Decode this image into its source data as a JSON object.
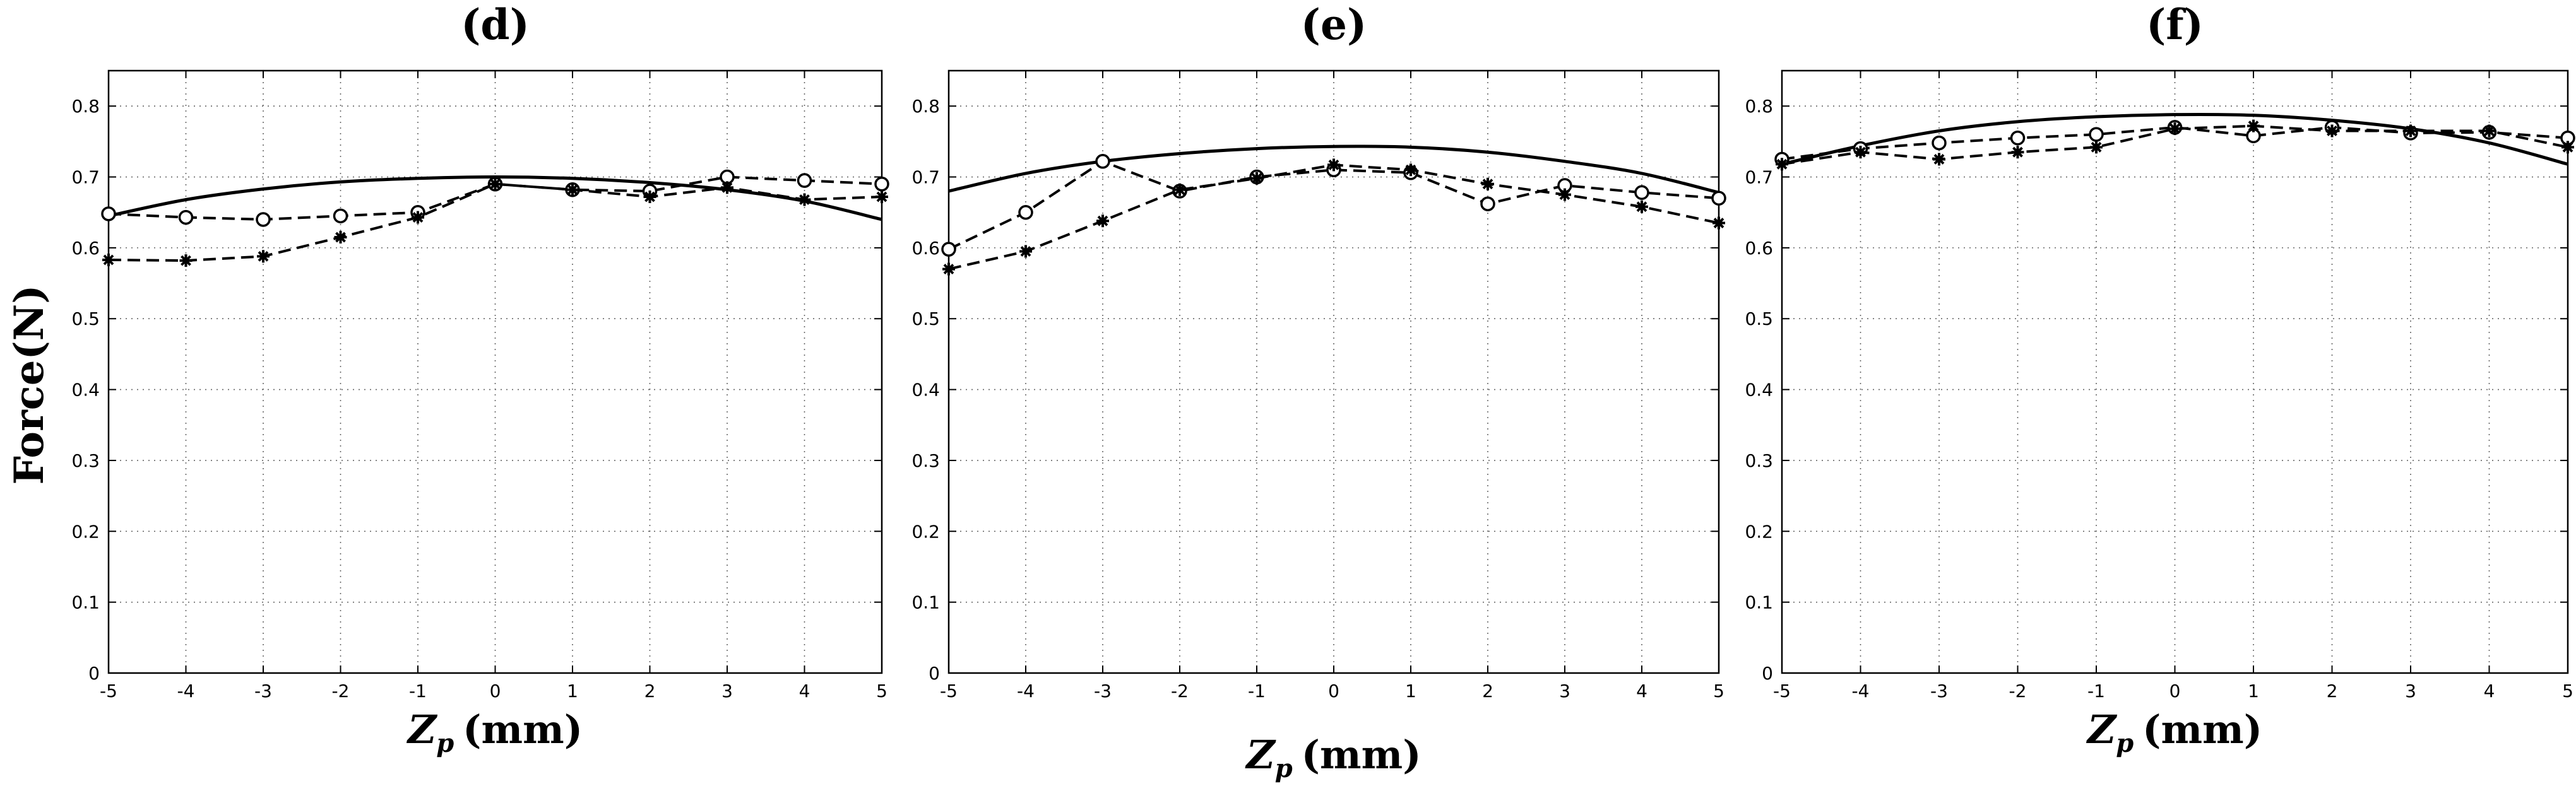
{
  "figure": {
    "ylabel": "Force(N)"
  },
  "chart_data": [
    {
      "type": "line",
      "title": "(d)",
      "xlabel_main": "Z",
      "xlabel_sub": "p",
      "xlabel_unit": "(mm)",
      "ylabel": "Force(N)",
      "xlim": [
        -5,
        5
      ],
      "ylim": [
        0,
        0.85
      ],
      "grid": true,
      "x": [
        -5,
        -4,
        -3,
        -2,
        -1,
        0,
        1,
        2,
        3,
        4,
        5
      ],
      "x_ticks": [
        "-5",
        "-4",
        "-3",
        "-2",
        "-1",
        "0",
        "1",
        "2",
        "3",
        "4",
        "5"
      ],
      "y_ticks": [
        "0",
        "0.1",
        "0.2",
        "0.3",
        "0.4",
        "0.5",
        "0.6",
        "0.7",
        "0.8"
      ],
      "series": [
        {
          "name": "solid",
          "style": "solid",
          "values": [
            0.645,
            0.668,
            0.683,
            0.693,
            0.698,
            0.7,
            0.698,
            0.692,
            0.682,
            0.666,
            0.64
          ]
        },
        {
          "name": "circles",
          "style": "dashed-circle",
          "values": [
            0.648,
            0.643,
            0.64,
            0.645,
            0.65,
            0.69,
            0.682,
            0.68,
            0.7,
            0.695,
            0.69
          ]
        },
        {
          "name": "stars",
          "style": "dashed-star",
          "values": [
            0.583,
            0.582,
            0.588,
            0.615,
            0.643,
            0.69,
            0.682,
            0.672,
            0.685,
            0.668,
            0.672
          ]
        }
      ]
    },
    {
      "type": "line",
      "title": "(e)",
      "xlabel_main": "Z",
      "xlabel_sub": "p",
      "xlabel_unit": "(mm)",
      "ylabel": "",
      "xlim": [
        -5,
        5
      ],
      "ylim": [
        0,
        0.85
      ],
      "grid": true,
      "x": [
        -5,
        -4,
        -3,
        -2,
        -1,
        0,
        1,
        2,
        3,
        4,
        5
      ],
      "x_ticks": [
        "-5",
        "-4",
        "-3",
        "-2",
        "-1",
        "0",
        "1",
        "2",
        "3",
        "4",
        "5"
      ],
      "y_ticks": [
        "0",
        "0.1",
        "0.2",
        "0.3",
        "0.4",
        "0.5",
        "0.6",
        "0.7",
        "0.8"
      ],
      "series": [
        {
          "name": "solid",
          "style": "solid",
          "values": [
            0.68,
            0.705,
            0.722,
            0.733,
            0.74,
            0.743,
            0.742,
            0.735,
            0.722,
            0.705,
            0.678
          ]
        },
        {
          "name": "circles",
          "style": "dashed-circle",
          "values": [
            0.598,
            0.65,
            0.722,
            0.68,
            0.7,
            0.71,
            0.706,
            0.662,
            0.688,
            0.678,
            0.67
          ]
        },
        {
          "name": "stars",
          "style": "dashed-star",
          "values": [
            0.57,
            0.595,
            0.638,
            0.682,
            0.698,
            0.717,
            0.71,
            0.69,
            0.675,
            0.658,
            0.635
          ]
        }
      ]
    },
    {
      "type": "line",
      "title": "(f)",
      "xlabel_main": "Z",
      "xlabel_sub": "p",
      "xlabel_unit": "(mm)",
      "ylabel": "",
      "xlim": [
        -5,
        5
      ],
      "ylim": [
        0,
        0.85
      ],
      "grid": true,
      "x": [
        -5,
        -4,
        -3,
        -2,
        -1,
        0,
        1,
        2,
        3,
        4,
        5
      ],
      "x_ticks": [
        "-5",
        "-4",
        "-3",
        "-2",
        "-1",
        "0",
        "1",
        "2",
        "3",
        "4",
        "5"
      ],
      "y_ticks": [
        "0",
        "0.1",
        "0.2",
        "0.3",
        "0.4",
        "0.5",
        "0.6",
        "0.7",
        "0.8"
      ],
      "series": [
        {
          "name": "solid",
          "style": "solid",
          "values": [
            0.718,
            0.744,
            0.765,
            0.778,
            0.785,
            0.788,
            0.787,
            0.78,
            0.768,
            0.748,
            0.718
          ]
        },
        {
          "name": "circles",
          "style": "dashed-circle",
          "values": [
            0.725,
            0.74,
            0.748,
            0.755,
            0.76,
            0.77,
            0.758,
            0.77,
            0.762,
            0.763,
            0.755
          ]
        },
        {
          "name": "stars",
          "style": "dashed-star",
          "values": [
            0.718,
            0.735,
            0.725,
            0.735,
            0.742,
            0.768,
            0.772,
            0.765,
            0.765,
            0.765,
            0.742
          ]
        }
      ]
    }
  ]
}
